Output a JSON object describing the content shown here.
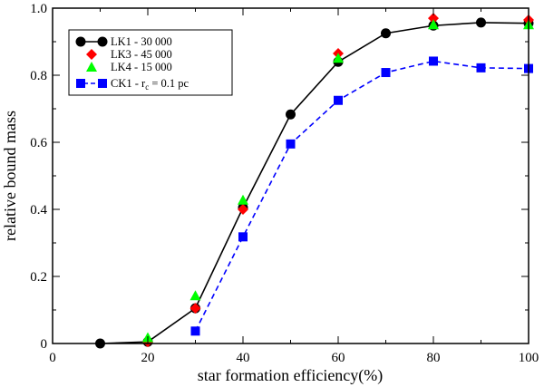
{
  "chart_data": {
    "type": "line",
    "title": "",
    "xlabel": "star formation efficiency(%)",
    "ylabel": "relative bound mass",
    "xlim": [
      0,
      100
    ],
    "ylim": [
      0,
      1.0
    ],
    "x_ticks": [
      0,
      20,
      40,
      60,
      80,
      100
    ],
    "x_tick_labels": [
      "0",
      "20",
      "40",
      "60",
      "80",
      "100"
    ],
    "y_ticks": [
      0,
      0.2,
      0.4,
      0.6,
      0.8,
      1.0
    ],
    "y_tick_labels": [
      "0",
      "0.2",
      "0.4",
      "0.6",
      "0.8",
      "1.0"
    ],
    "legend_position": "top-left",
    "series": [
      {
        "name": "LK1 - 30 000",
        "marker": "circle",
        "color": "#000000",
        "line": "solid",
        "x": [
          10,
          20,
          30,
          40,
          50,
          60,
          70,
          80,
          90,
          100
        ],
        "y": [
          0.0,
          0.005,
          0.105,
          0.405,
          0.683,
          0.84,
          0.925,
          0.948,
          0.957,
          0.955
        ]
      },
      {
        "name": "LK3 - 45 000",
        "marker": "diamond",
        "color": "#ff0000",
        "line": "none",
        "x": [
          20,
          30,
          40,
          60,
          80,
          100
        ],
        "y": [
          0.005,
          0.105,
          0.4,
          0.865,
          0.97,
          0.965
        ]
      },
      {
        "name": "LK4 - 15 000",
        "marker": "triangle",
        "color": "#00ff00",
        "line": "none",
        "x": [
          20,
          30,
          40,
          60,
          80,
          100
        ],
        "y": [
          0.015,
          0.14,
          0.425,
          0.848,
          0.948,
          0.948
        ]
      },
      {
        "name": "CK1 - r",
        "name_subscript": "c",
        "name_suffix": " = 0.1 pc",
        "marker": "square",
        "color": "#0000ff",
        "line": "dashed",
        "x": [
          30,
          40,
          50,
          60,
          70,
          80,
          90,
          100
        ],
        "y": [
          0.037,
          0.318,
          0.595,
          0.725,
          0.808,
          0.842,
          0.822,
          0.82
        ]
      }
    ]
  }
}
